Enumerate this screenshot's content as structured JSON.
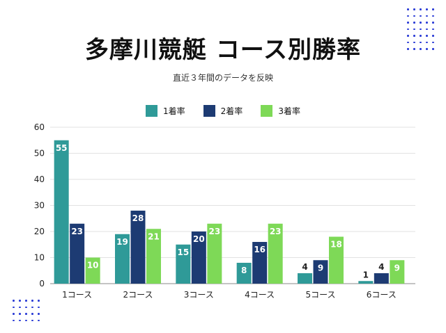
{
  "title": "多摩川競艇 コース別勝率",
  "subtitle": "直近３年間のデータを反映",
  "colors": {
    "series1": "#2f9a98",
    "series2": "#1d3b73",
    "series3": "#7ed957",
    "dots": "#2a3bd6"
  },
  "chart_data": {
    "type": "bar",
    "categories": [
      "1コース",
      "2コース",
      "3コース",
      "4コース",
      "5コース",
      "6コース"
    ],
    "series": [
      {
        "name": "1着率",
        "values": [
          55,
          19,
          15,
          8,
          4,
          1
        ]
      },
      {
        "name": "2着率",
        "values": [
          23,
          28,
          20,
          16,
          9,
          4
        ]
      },
      {
        "name": "3着率",
        "values": [
          10,
          21,
          23,
          23,
          18,
          9
        ]
      }
    ],
    "yticks": [
      "0",
      "10",
      "20",
      "30",
      "40",
      "50",
      "60"
    ],
    "ylim": [
      0,
      60
    ],
    "grid": true,
    "legend": "top"
  }
}
